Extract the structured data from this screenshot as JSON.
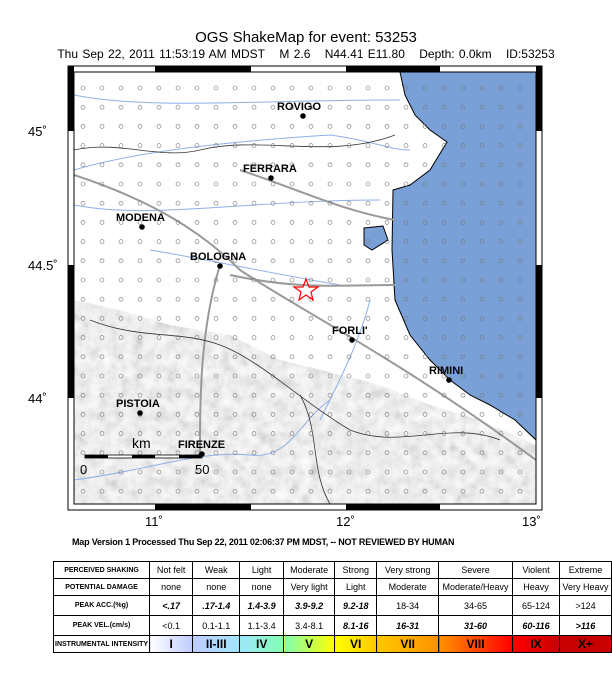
{
  "header": {
    "title": "OGS ShakeMap for event: 53253",
    "date": "Thu Sep 22, 2011 11:53:19 AM MDST",
    "magnitude": "M 2.6",
    "location": "N44.41 E11.80",
    "depth": "Depth: 0.0km",
    "id": "ID:53253"
  },
  "map": {
    "sea_color": "#7aa0d8",
    "lat_labels": [
      "45˚",
      "44.5˚",
      "44˚"
    ],
    "lon_labels": [
      "11˚",
      "12˚",
      "13˚"
    ],
    "scale": {
      "unit": "km",
      "start": "0",
      "end": "50"
    },
    "cities": [
      {
        "name": "ROVIGO"
      },
      {
        "name": "FERRARA"
      },
      {
        "name": "MODENA"
      },
      {
        "name": "BOLOGNA"
      },
      {
        "name": "FORLI'"
      },
      {
        "name": "RIMINI"
      },
      {
        "name": "PISTOIA"
      },
      {
        "name": "FIRENZE"
      }
    ],
    "epicenter": {
      "lat": 44.41,
      "lon": 11.8,
      "icon": "star-icon",
      "color": "#ff0000"
    }
  },
  "version_line": "Map Version 1 Processed Thu Sep 22, 2011 02:06:37 PM MDST, -- NOT REVIEWED BY HUMAN",
  "legend": {
    "row_headers": [
      "PERCEIVED SHAKING",
      "POTENTIAL DAMAGE",
      "PEAK ACC.(%g)",
      "PEAK VEL.(cm/s)",
      "INSTRUMENTAL INTENSITY"
    ],
    "shaking": [
      "Not felt",
      "Weak",
      "Light",
      "Moderate",
      "Strong",
      "Very strong",
      "Severe",
      "Violent",
      "Extreme"
    ],
    "damage": [
      "none",
      "none",
      "none",
      "Very light",
      "Light",
      "Moderate",
      "Moderate/Heavy",
      "Heavy",
      "Very Heavy"
    ],
    "acc": [
      "<.17",
      ".17-1.4",
      "1.4-3.9",
      "3.9-9.2",
      "9.2-18",
      "18-34",
      "34-65",
      "65-124",
      ">124"
    ],
    "vel": [
      "<0.1",
      "0.1-1.1",
      "1.1-3.4",
      "3.4-8.1",
      "8.1-16",
      "16-31",
      "31-60",
      "60-116",
      ">116"
    ],
    "intensity": [
      "I",
      "II-III",
      "IV",
      "V",
      "VI",
      "VII",
      "VIII",
      "IX",
      "X+"
    ],
    "colors": [
      "#ffffff",
      "#bfccff",
      "#a0e6ff",
      "#80ffb0",
      "#ffff00",
      "#ffc800",
      "#ff9100",
      "#ff0000",
      "#c80000"
    ]
  }
}
